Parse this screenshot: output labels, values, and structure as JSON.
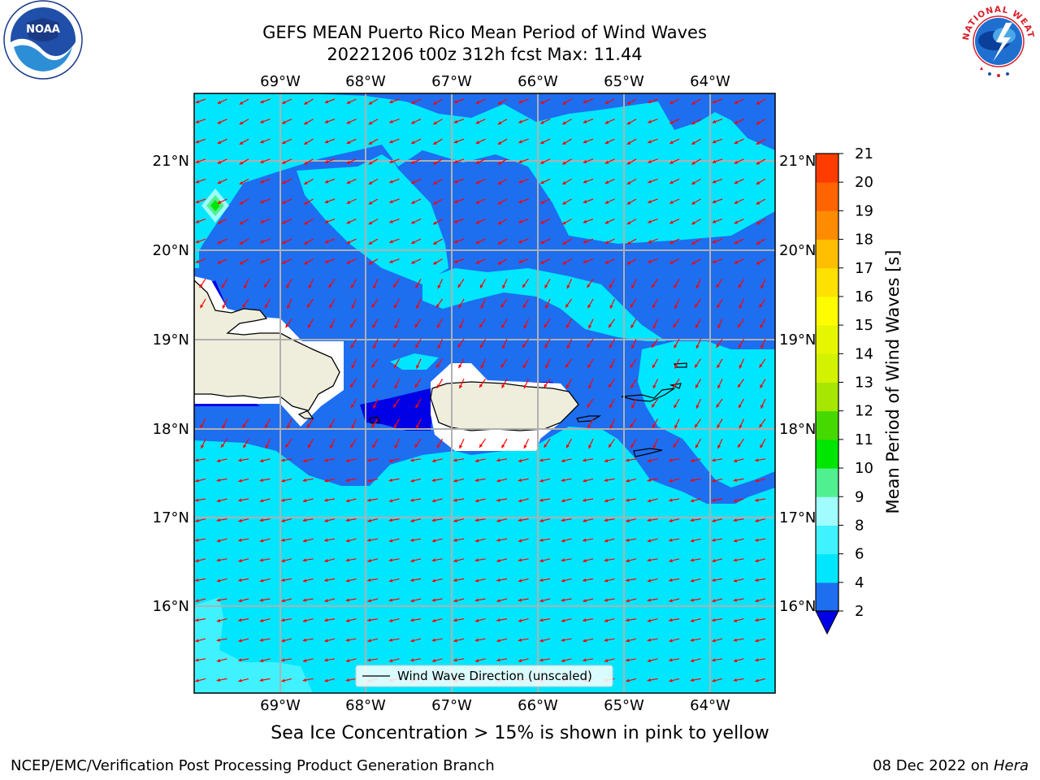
{
  "title": {
    "line1": "GEFS MEAN Puerto Rico Mean Period of Wind Waves",
    "line2": "20221206 t00z 312h fcst   Max: 11.44"
  },
  "map": {
    "lon_labels": [
      "69°W",
      "68°W",
      "67°W",
      "66°W",
      "65°W",
      "64°W"
    ],
    "lat_labels": [
      "21°N",
      "20°N",
      "19°N",
      "18°N",
      "17°N",
      "16°N"
    ],
    "legend_label": "Wind Wave Direction (unscaled)",
    "arrow_color": "#ff0000"
  },
  "colorbar": {
    "label": "Mean Period of Wind Waves [s]",
    "ticks": [
      "2",
      "4",
      "6",
      "8",
      "9",
      "10",
      "11",
      "12",
      "13",
      "14",
      "15",
      "16",
      "17",
      "18",
      "19",
      "20",
      "21"
    ],
    "colors": [
      "#1e6ef0",
      "#00e6ff",
      "#40f2ff",
      "#a0fcff",
      "#50f090",
      "#00e600",
      "#46d900",
      "#a6e600",
      "#d2f200",
      "#e6f500",
      "#fffc00",
      "#ffe100",
      "#ffbe00",
      "#ff8c00",
      "#ff6400",
      "#ff3c00",
      "#ff0000"
    ],
    "under_color": "#0000e6"
  },
  "subtitle": "Sea Ice Concentration > 15% is shown in pink to yellow",
  "footer": {
    "left": "NCEP/EMC/Verification Post Processing Product Generation Branch",
    "right_date": "08 Dec 2022 on",
    "right_host": "Hera"
  },
  "logos": {
    "noaa": "NOAA",
    "nws": "NATIONAL WEATHER SERVICE"
  }
}
